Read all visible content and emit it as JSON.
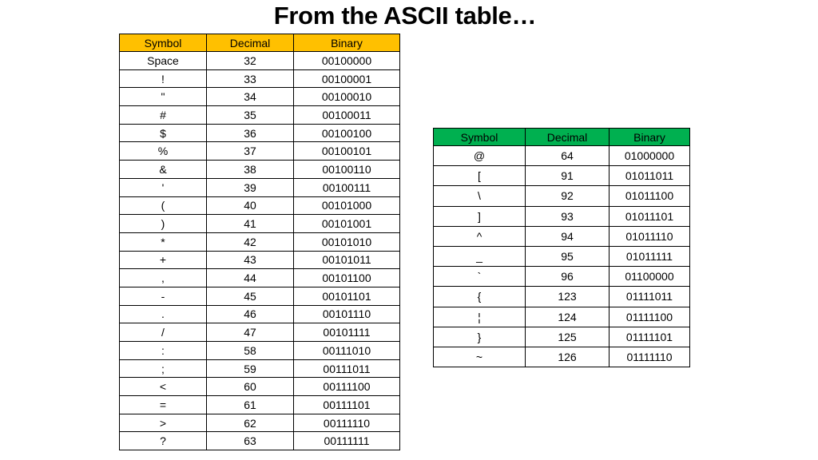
{
  "title": "From the ASCII table…",
  "colors": {
    "table1_header": "#FFC000",
    "table2_header": "#00B050"
  },
  "table1": {
    "headers": [
      "Symbol",
      "Decimal",
      "Binary"
    ],
    "rows": [
      [
        "Space",
        "32",
        "00100000"
      ],
      [
        "!",
        "33",
        "00100001"
      ],
      [
        "\"",
        "34",
        "00100010"
      ],
      [
        "#",
        "35",
        "00100011"
      ],
      [
        "$",
        "36",
        "00100100"
      ],
      [
        "%",
        "37",
        "00100101"
      ],
      [
        "&",
        "38",
        "00100110"
      ],
      [
        "'",
        "39",
        "00100111"
      ],
      [
        "(",
        "40",
        "00101000"
      ],
      [
        ")",
        "41",
        "00101001"
      ],
      [
        "*",
        "42",
        "00101010"
      ],
      [
        "+",
        "43",
        "00101011"
      ],
      [
        ",",
        "44",
        "00101100"
      ],
      [
        "-",
        "45",
        "00101101"
      ],
      [
        ".",
        "46",
        "00101110"
      ],
      [
        "/",
        "47",
        "00101111"
      ],
      [
        ":",
        "58",
        "00111010"
      ],
      [
        ";",
        "59",
        "00111011"
      ],
      [
        "<",
        "60",
        "00111100"
      ],
      [
        "=",
        "61",
        "00111101"
      ],
      [
        ">",
        "62",
        "00111110"
      ],
      [
        "?",
        "63",
        "00111111"
      ]
    ]
  },
  "table2": {
    "headers": [
      "Symbol",
      "Decimal",
      "Binary"
    ],
    "rows": [
      [
        "@",
        "64",
        "01000000"
      ],
      [
        "[",
        "91",
        "01011011"
      ],
      [
        "\\",
        "92",
        "01011100"
      ],
      [
        "]",
        "93",
        "01011101"
      ],
      [
        "^",
        "94",
        "01011110"
      ],
      [
        "_",
        "95",
        "01011111"
      ],
      [
        "`",
        "96",
        "01100000"
      ],
      [
        "{",
        "123",
        "01111011"
      ],
      [
        "¦",
        "124",
        "01111100"
      ],
      [
        "}",
        "125",
        "01111101"
      ],
      [
        "~",
        "126",
        "01111110"
      ]
    ]
  }
}
